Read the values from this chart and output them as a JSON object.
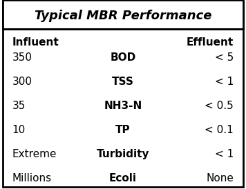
{
  "title": "Typical MBR Performance",
  "header_left": "Influent",
  "header_right": "Effluent",
  "rows": [
    {
      "parameter": "BOD",
      "influent": "350",
      "effluent": "< 5"
    },
    {
      "parameter": "TSS",
      "influent": "300",
      "effluent": "< 1"
    },
    {
      "parameter": "NH3-N",
      "influent": "35",
      "effluent": "< 0.5"
    },
    {
      "parameter": "TP",
      "influent": "10",
      "effluent": "< 0.1"
    },
    {
      "parameter": "Turbidity",
      "influent": "Extreme",
      "effluent": "< 1"
    },
    {
      "parameter": "Ecoli",
      "influent": "Millions",
      "effluent": "None"
    }
  ],
  "bg_color": "#ffffff",
  "border_color": "#000000",
  "text_color": "#000000",
  "title_fontsize": 13,
  "header_fontsize": 11,
  "row_fontsize": 11,
  "figsize": [
    3.56,
    2.74
  ],
  "dpi": 100
}
